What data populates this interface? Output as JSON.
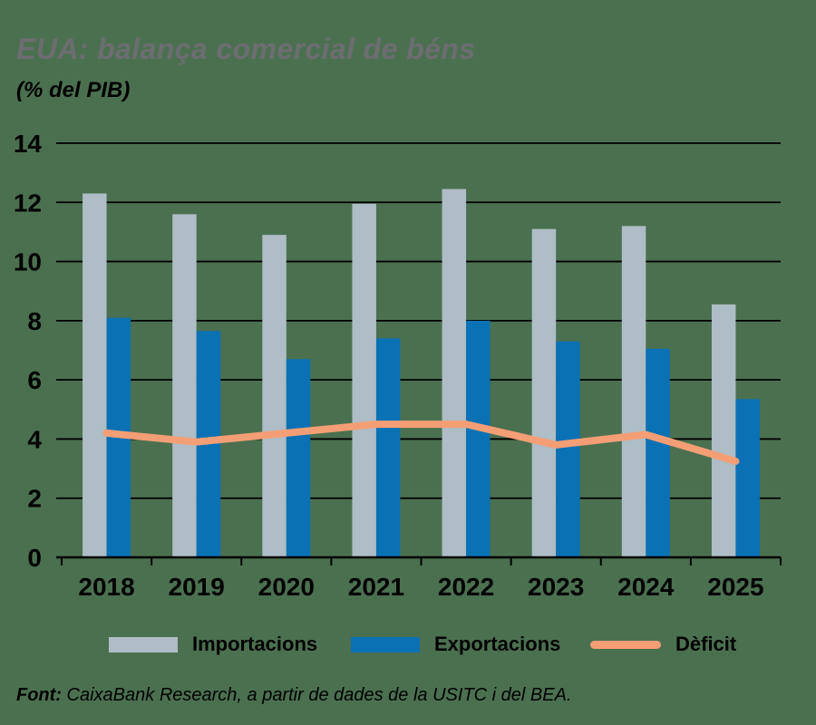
{
  "footer": {
    "label": "Font:",
    "text": " CaixaBank Research, a partir de dades de la USITC i del BEA."
  },
  "colors": {
    "background": "#4b7050",
    "title": "#6d6e71",
    "text": "#000000",
    "importacions": "#aebdc6",
    "exportacions": "#0b71b5",
    "deficit": "#f49e76"
  },
  "chart_data": {
    "type": "bar+line",
    "title": "EUA: balança comercial de béns",
    "subtitle": "(% del PIB)",
    "categories": [
      "2018",
      "2019",
      "2020",
      "2021",
      "2022",
      "2023",
      "2024",
      "2025"
    ],
    "series": [
      {
        "name": "Importacions",
        "type": "bar",
        "color_key": "importacions",
        "values": [
          12.3,
          11.6,
          10.9,
          11.95,
          12.45,
          11.1,
          11.2,
          8.55
        ]
      },
      {
        "name": "Exportacions",
        "type": "bar",
        "color_key": "exportacions",
        "values": [
          8.1,
          7.65,
          6.7,
          7.4,
          8.0,
          7.3,
          7.05,
          5.35
        ]
      },
      {
        "name": "Dèficit",
        "type": "line",
        "color_key": "deficit",
        "values": [
          4.2,
          3.9,
          4.2,
          4.5,
          4.5,
          3.8,
          4.15,
          3.25
        ]
      }
    ],
    "xlabel": "",
    "ylabel": "",
    "ylim": [
      0,
      14
    ],
    "yticks": [
      0,
      2,
      4,
      6,
      8,
      10,
      12,
      14
    ],
    "grid": true,
    "legend_position": "bottom"
  }
}
